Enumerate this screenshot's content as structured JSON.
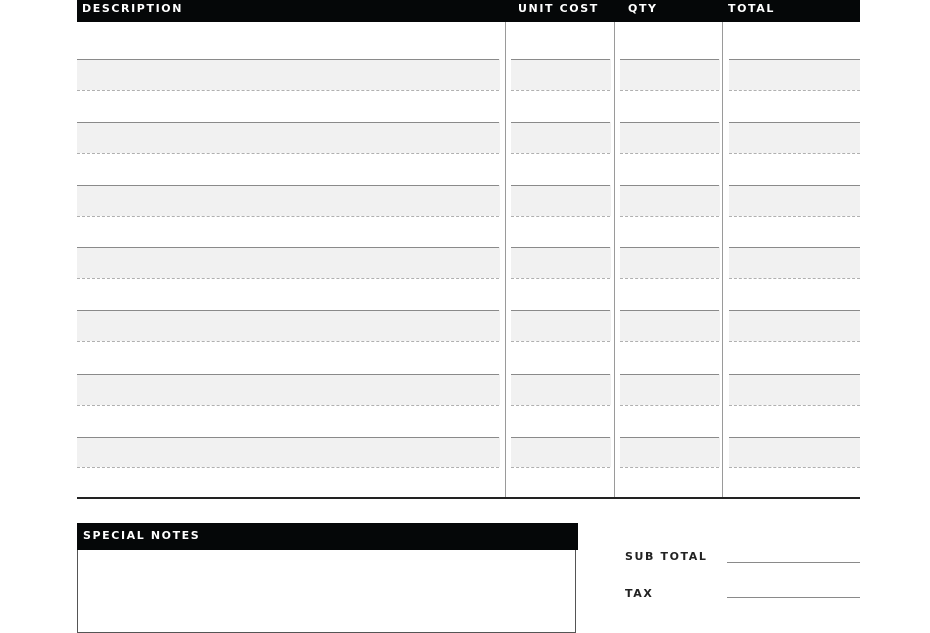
{
  "table": {
    "headers": {
      "description": "DESCRIPTION",
      "unit_cost": "UNIT COST",
      "qty": "QTY",
      "total": "TOTAL"
    },
    "row_pairs": 7
  },
  "notes": {
    "title": "SPECIAL NOTES"
  },
  "totals": {
    "sub_total": "SUB TOTAL",
    "tax": "TAX"
  },
  "colors": {
    "header_bg": "#050708",
    "band": "#f1f1f1"
  }
}
